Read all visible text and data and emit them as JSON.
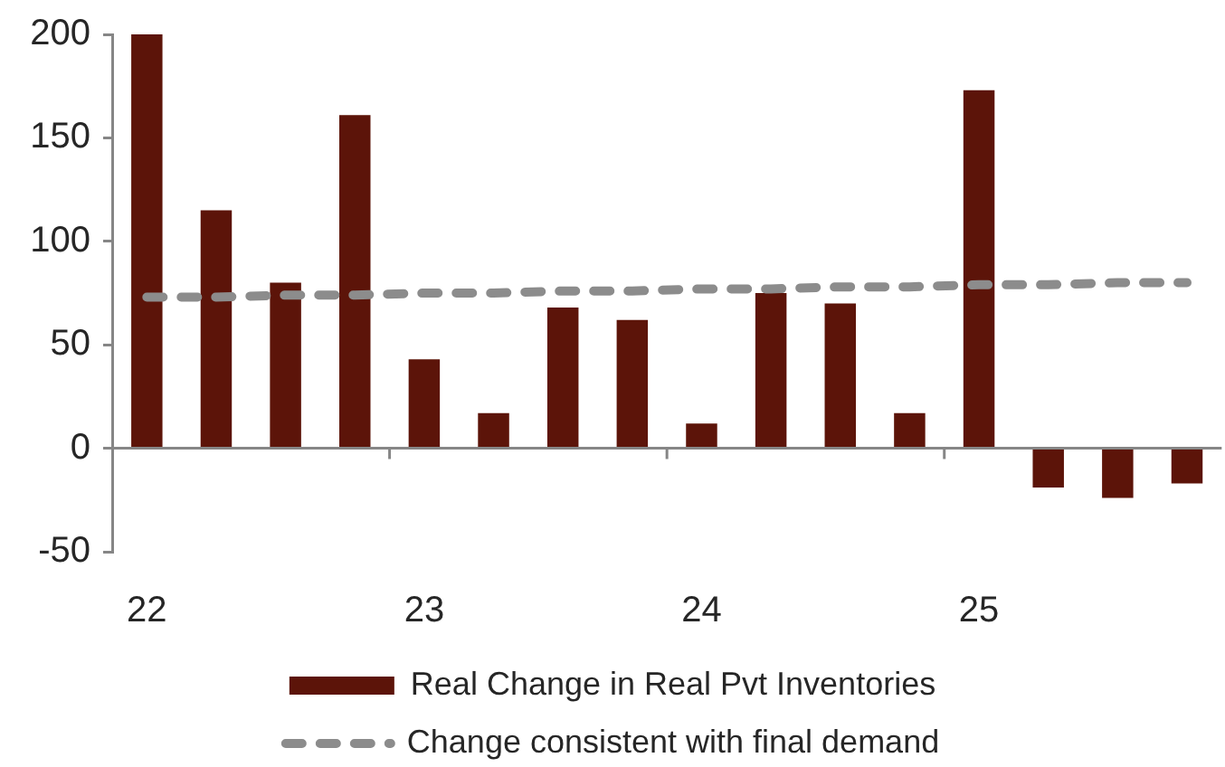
{
  "chart_data": {
    "type": "bar",
    "categories": [
      "22",
      null,
      null,
      null,
      "23",
      null,
      null,
      null,
      "24",
      null,
      null,
      null,
      "25",
      null,
      null,
      null
    ],
    "series": [
      {
        "name": "Real Change in Real Pvt Inventories",
        "color": "#5c1409",
        "values": [
          200,
          115,
          80,
          161,
          43,
          17,
          68,
          62,
          12,
          75,
          70,
          17,
          173,
          -19,
          -24,
          -17
        ]
      },
      {
        "name": "Change consistent with final demand",
        "type": "line",
        "color": "#8c8c8c",
        "line_style": "dashed",
        "marker": "none",
        "values": [
          73,
          73,
          74,
          74,
          75,
          75,
          76,
          76,
          77,
          77,
          78,
          78,
          79,
          79,
          80,
          80
        ]
      }
    ],
    "ylim": [
      -50,
      200
    ],
    "yticks": [
      -50,
      0,
      50,
      100,
      150,
      200
    ],
    "legend": "bottom"
  }
}
